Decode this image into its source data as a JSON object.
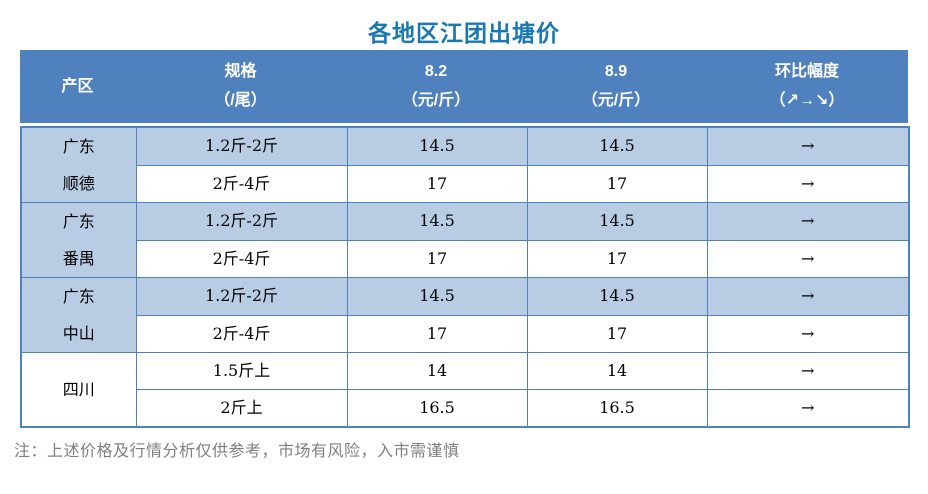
{
  "title": "各地区江团出塘价",
  "table": {
    "headers": [
      {
        "line1": "产区",
        "line2": ""
      },
      {
        "line1": "规格",
        "line2": "（/尾）"
      },
      {
        "line1": "8.2",
        "line2": "（元/斤）"
      },
      {
        "line1": "8.9",
        "line2": "（元/斤）"
      },
      {
        "line1": "环比幅度",
        "line2": "（↗→↘）"
      }
    ],
    "groups": [
      {
        "region": [
          "广东",
          "顺德"
        ],
        "rows": [
          {
            "spec": "1.2斤-2斤",
            "p1": "14.5",
            "p2": "14.5",
            "trend": "→"
          },
          {
            "spec": "2斤-4斤",
            "p1": "17",
            "p2": "17",
            "trend": "→"
          }
        ]
      },
      {
        "region": [
          "广东",
          "番禺"
        ],
        "rows": [
          {
            "spec": "1.2斤-2斤",
            "p1": "14.5",
            "p2": "14.5",
            "trend": "→"
          },
          {
            "spec": "2斤-4斤",
            "p1": "17",
            "p2": "17",
            "trend": "→"
          }
        ]
      },
      {
        "region": [
          "广东",
          "中山"
        ],
        "rows": [
          {
            "spec": "1.2斤-2斤",
            "p1": "14.5",
            "p2": "14.5",
            "trend": "→"
          },
          {
            "spec": "2斤-4斤",
            "p1": "17",
            "p2": "17",
            "trend": "→"
          }
        ]
      },
      {
        "region": [
          "四川"
        ],
        "rows": [
          {
            "spec": "1.5斤上",
            "p1": "14",
            "p2": "14",
            "trend": "→"
          },
          {
            "spec": "2斤上",
            "p1": "16.5",
            "p2": "16.5",
            "trend": "→"
          }
        ]
      }
    ]
  },
  "note": "注：上述价格及行情分析仅供参考，市场有风险，入市需谨慎",
  "colors": {
    "title": "#1878B2",
    "header_bg": "#4E81BD",
    "border": "#4F81BD",
    "row_shaded_bg": "#B8CCE4",
    "note_text": "#7F7F7F"
  },
  "chart_data": {
    "type": "table",
    "title": "各地区江团出塘价",
    "columns": [
      "产区",
      "规格（/尾）",
      "8.2（元/斤）",
      "8.9（元/斤）",
      "环比幅度（↗→↘）"
    ],
    "rows": [
      [
        "广东顺德",
        "1.2斤-2斤",
        14.5,
        14.5,
        "→"
      ],
      [
        "广东顺德",
        "2斤-4斤",
        17,
        17,
        "→"
      ],
      [
        "广东番禺",
        "1.2斤-2斤",
        14.5,
        14.5,
        "→"
      ],
      [
        "广东番禺",
        "2斤-4斤",
        17,
        17,
        "→"
      ],
      [
        "广东中山",
        "1.2斤-2斤",
        14.5,
        14.5,
        "→"
      ],
      [
        "广东中山",
        "2斤-4斤",
        17,
        17,
        "→"
      ],
      [
        "四川",
        "1.5斤上",
        14,
        14,
        "→"
      ],
      [
        "四川",
        "2斤上",
        16.5,
        16.5,
        "→"
      ]
    ],
    "note": "注：上述价格及行情分析仅供参考，市场有风险，入市需谨慎"
  }
}
